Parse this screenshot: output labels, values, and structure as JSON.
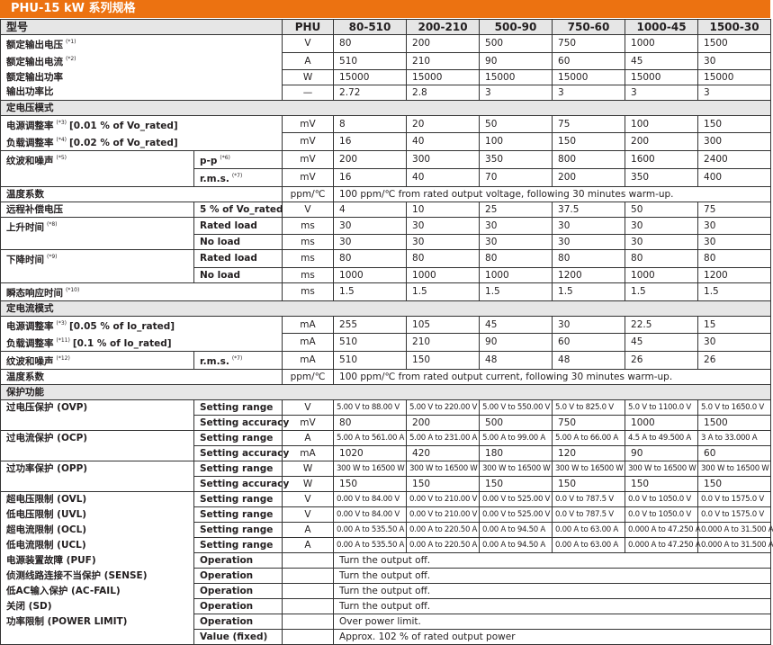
{
  "title": "PHU-15 kW 系列规格",
  "colors": {
    "title_bar": "#ec7211",
    "section_bg": "#e6e6e6"
  },
  "header": {
    "label": "型号",
    "unit": "PHU",
    "models": [
      "80-510",
      "200-210",
      "500-90",
      "750-60",
      "1000-45",
      "1500-30"
    ]
  },
  "rows": [
    {
      "block": true,
      "label": "额定输出电压",
      "note": "(*1)",
      "unit": "V",
      "values": [
        "80",
        "200",
        "500",
        "750",
        "1000",
        "1500"
      ]
    },
    {
      "label": "额定输出电流",
      "note": "(*2)",
      "unit": "A",
      "values": [
        "510",
        "210",
        "90",
        "60",
        "45",
        "30"
      ]
    },
    {
      "label": "额定输出功率",
      "unit": "W",
      "values": [
        "15000",
        "15000",
        "15000",
        "15000",
        "15000",
        "15000"
      ]
    },
    {
      "label": "输出功率比",
      "unit": "—",
      "values": [
        "2.72",
        "2.8",
        "3",
        "3",
        "3",
        "3"
      ]
    },
    {
      "section": "定电压模式"
    },
    {
      "block": true,
      "label": "电源调整率",
      "note": "(*3)",
      "extra": "[0.01 % of Vo_rated]",
      "unit": "mV",
      "values": [
        "8",
        "20",
        "50",
        "75",
        "100",
        "150"
      ]
    },
    {
      "label": "负载调整率",
      "note": "(*4)",
      "extra": "[0.02 % of Vo_rated]",
      "unit": "mV",
      "values": [
        "16",
        "40",
        "100",
        "150",
        "200",
        "300"
      ]
    },
    {
      "block": true,
      "label": "纹波和噪声",
      "note": "(*5)",
      "sub": "p-p",
      "sub_note": "(*6)",
      "unit": "mV",
      "values": [
        "200",
        "300",
        "350",
        "800",
        "1600",
        "2400"
      ]
    },
    {
      "label": "",
      "sub": "r.m.s.",
      "sub_note": "(*7)",
      "unit": "mV",
      "values": [
        "16",
        "40",
        "70",
        "200",
        "350",
        "400"
      ]
    },
    {
      "block": true,
      "label": "温度系数",
      "unit": "ppm/℃",
      "span": "100 ppm/℃ from rated output voltage, following 30 minutes warm-up."
    },
    {
      "block": true,
      "label": "远程补偿电压",
      "sub": "5 % of Vo_rated",
      "unit": "V",
      "values": [
        "4",
        "10",
        "25",
        "37.5",
        "50",
        "75"
      ]
    },
    {
      "block": true,
      "label": "上升时间",
      "note": "(*8)",
      "sub": "Rated load",
      "unit": "ms",
      "values": [
        "30",
        "30",
        "30",
        "30",
        "30",
        "30"
      ]
    },
    {
      "label": "",
      "sub": "No load",
      "unit": "ms",
      "values": [
        "30",
        "30",
        "30",
        "30",
        "30",
        "30"
      ]
    },
    {
      "block": true,
      "label": "下降时间",
      "note": "(*9)",
      "sub": "Rated load",
      "unit": "ms",
      "values": [
        "80",
        "80",
        "80",
        "80",
        "80",
        "80"
      ]
    },
    {
      "label": "",
      "sub": "No load",
      "unit": "ms",
      "values": [
        "1000",
        "1000",
        "1000",
        "1200",
        "1000",
        "1200"
      ]
    },
    {
      "block": true,
      "label": "瞬态响应时间",
      "note": "(*10)",
      "unit": "ms",
      "values": [
        "1.5",
        "1.5",
        "1.5",
        "1.5",
        "1.5",
        "1.5"
      ]
    },
    {
      "section": "定电流模式"
    },
    {
      "block": true,
      "label": "电源调整率",
      "note": "(*3)",
      "extra": "[0.05 % of Io_rated]",
      "unit": "mA",
      "values": [
        "255",
        "105",
        "45",
        "30",
        "22.5",
        "15"
      ]
    },
    {
      "label": "负载调整率",
      "note": "(*11)",
      "extra": "[0.1 % of Io_rated]",
      "unit": "mA",
      "values": [
        "510",
        "210",
        "90",
        "60",
        "45",
        "30"
      ]
    },
    {
      "block": true,
      "label": "纹波和噪声",
      "note": "(*12)",
      "sub": "r.m.s.",
      "sub_note": "(*7)",
      "unit": "mA",
      "values": [
        "510",
        "150",
        "48",
        "48",
        "26",
        "26"
      ]
    },
    {
      "block": true,
      "label": "温度系数",
      "unit": "ppm/℃",
      "span": "100 ppm/℃ from rated output current, following 30 minutes warm-up."
    },
    {
      "section": "保护功能"
    },
    {
      "block": true,
      "small": true,
      "label": "过电压保护 (OVP)",
      "sub": "Setting range",
      "unit": "V",
      "values": [
        "5.00 V to 88.00 V",
        "5.00 V to 220.00 V",
        "5.00 V to 550.00 V",
        "5.0 V to 825.0 V",
        "5.0 V to 1100.0 V",
        "5.0 V to 1650.0 V"
      ]
    },
    {
      "label": "",
      "sub": "Setting accuracy",
      "unit": "mV",
      "values": [
        "80",
        "200",
        "500",
        "750",
        "1000",
        "1500"
      ]
    },
    {
      "block": true,
      "small": true,
      "label": "过电流保护 (OCP)",
      "sub": "Setting range",
      "unit": "A",
      "values": [
        "5.00 A to 561.00 A",
        "5.00 A to 231.00 A",
        "5.00 A to 99.00 A",
        "5.00 A to 66.00 A",
        "4.5 A to 49.500 A",
        "3 A to 33.000 A"
      ]
    },
    {
      "label": "",
      "sub": "Setting accuracy",
      "unit": "mA",
      "values": [
        "1020",
        "420",
        "180",
        "120",
        "90",
        "60"
      ]
    },
    {
      "block": true,
      "small": true,
      "label": "过功率保护 (OPP)",
      "sub": "Setting range",
      "unit": "W",
      "values": [
        "300 W to 16500 W",
        "300 W to 16500 W",
        "300 W to 16500 W",
        "300 W to 16500 W",
        "300 W to 16500 W",
        "300 W to 16500 W"
      ]
    },
    {
      "label": "",
      "sub": "Setting accuracy",
      "unit": "W",
      "values": [
        "150",
        "150",
        "150",
        "150",
        "150",
        "150"
      ]
    },
    {
      "block": true,
      "small": true,
      "label": "超电压限制 (OVL)",
      "sub": "Setting range",
      "unit": "V",
      "values": [
        "0.00 V to 84.00 V",
        "0.00 V to 210.00 V",
        "0.00 V to 525.00 V",
        "0.0 V to 787.5 V",
        "0.0 V to 1050.0 V",
        "0.0 V to 1575.0 V"
      ]
    },
    {
      "small": true,
      "label": "低电压限制 (UVL)",
      "sub": "Setting range",
      "unit": "V",
      "values": [
        "0.00 V to 84.00 V",
        "0.00 V to 210.00 V",
        "0.00 V to 525.00 V",
        "0.0 V to 787.5 V",
        "0.0 V to 1050.0 V",
        "0.0 V to 1575.0 V"
      ]
    },
    {
      "small": true,
      "label": "超电流限制 (OCL)",
      "sub": "Setting range",
      "unit": "A",
      "values": [
        "0.00 A to 535.50 A",
        "0.00 A to 220.50 A",
        "0.00 A to 94.50 A",
        "0.00 A to 63.00 A",
        "0.000 A to 47.250 A",
        "0.000 A to 31.500 A"
      ]
    },
    {
      "small": true,
      "label": "低电流限制 (UCL)",
      "sub": "Setting range",
      "unit": "A",
      "values": [
        "0.00 A to 535.50 A",
        "0.00 A to 220.50 A",
        "0.00 A to 94.50 A",
        "0.00 A to 63.00 A",
        "0.000 A to 47.250 A",
        "0.000 A to 31.500 A"
      ]
    },
    {
      "label": "电源装置故障 (PUF)",
      "sub": "Operation",
      "unit": "",
      "span": "Turn the output off."
    },
    {
      "label": "侦测线路连接不当保护 (SENSE)",
      "sub": "Operation",
      "unit": "",
      "span": "Turn the output off."
    },
    {
      "label": "低AC输入保护 (AC-FAIL)",
      "sub": "Operation",
      "unit": "",
      "span": "Turn the output off."
    },
    {
      "label": "关闭 (SD)",
      "sub": "Operation",
      "unit": "",
      "span": "Turn the output off."
    },
    {
      "label": "功率限制 (POWER LIMIT)",
      "sub": "Operation",
      "unit": "",
      "span": "Over power limit."
    },
    {
      "label": "",
      "sub": "Value (fixed)",
      "unit": "",
      "span": "Approx. 102 % of rated output power"
    }
  ]
}
